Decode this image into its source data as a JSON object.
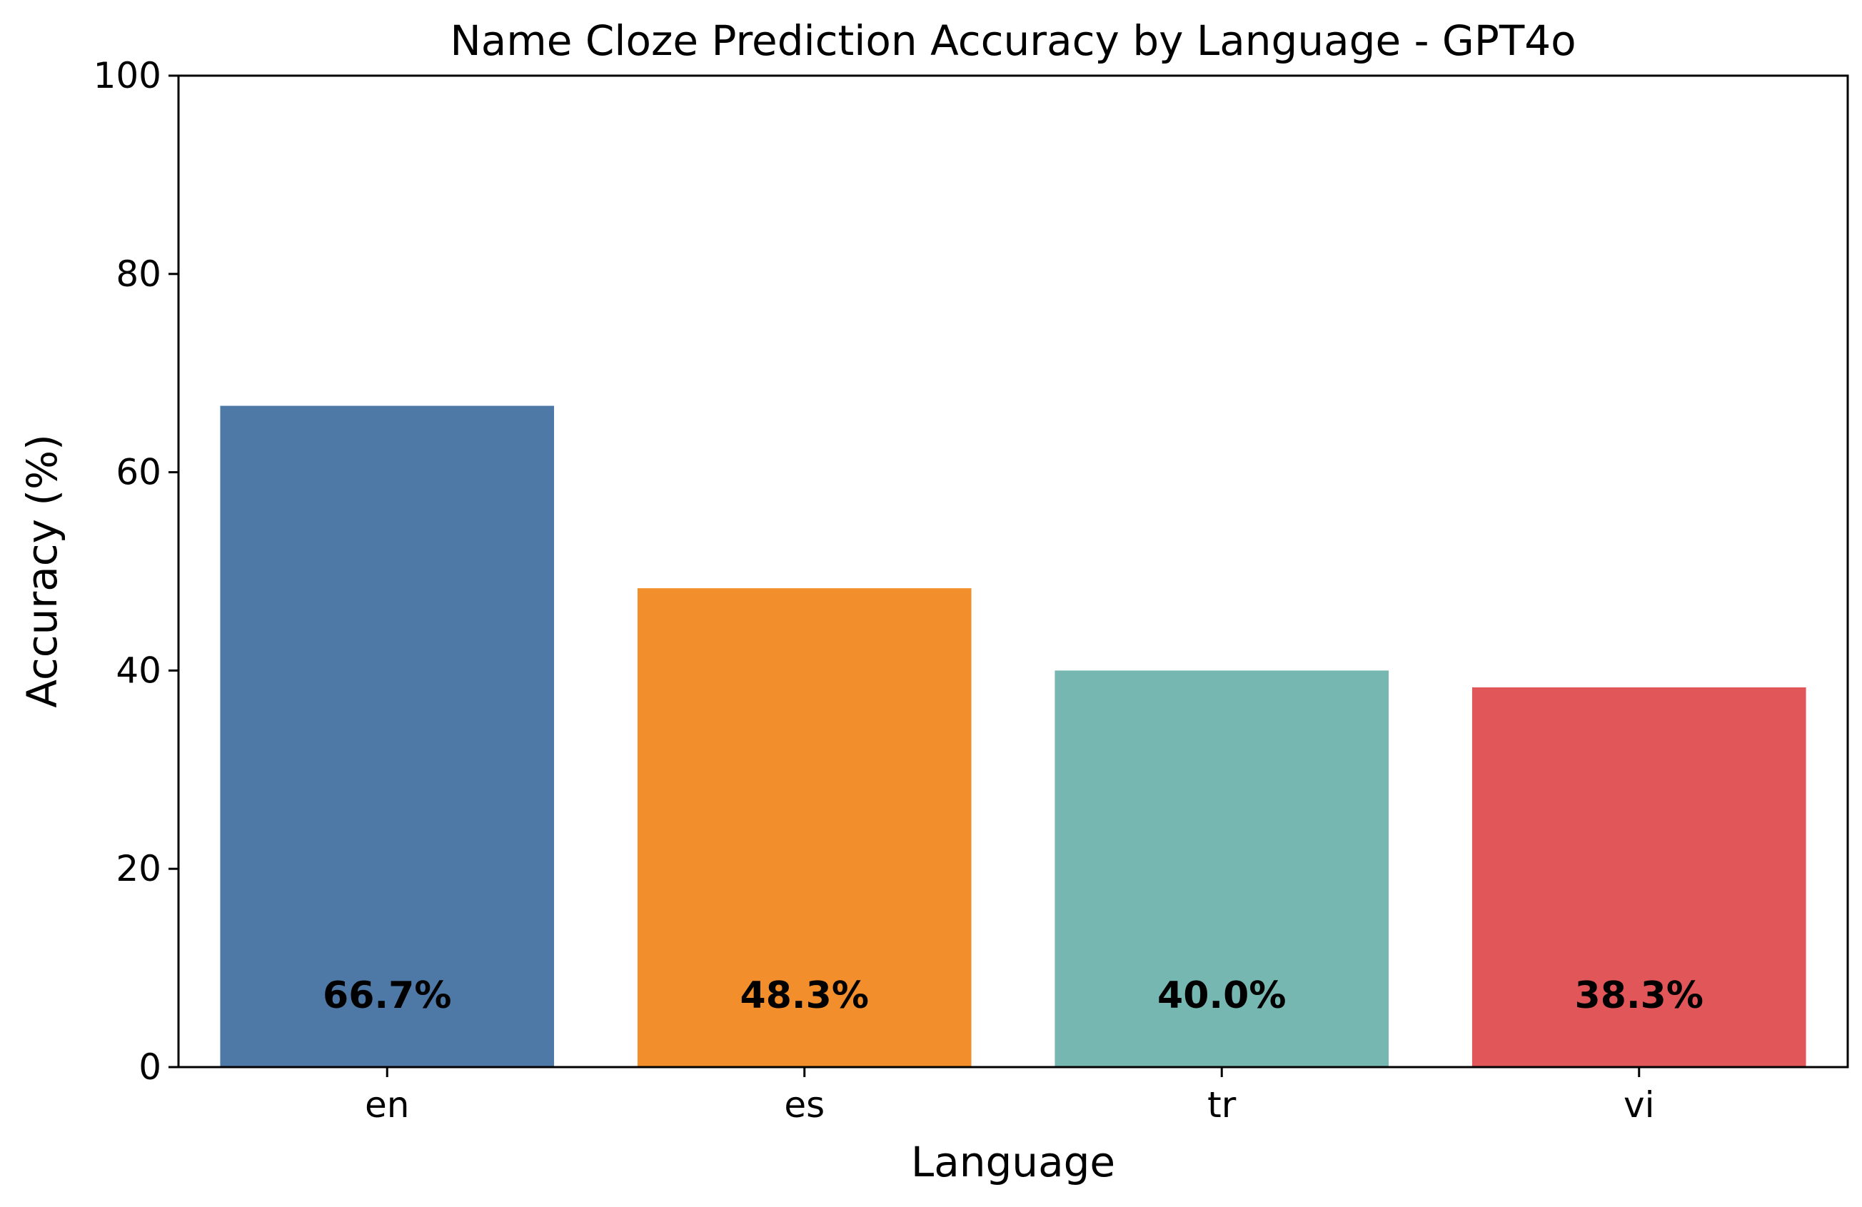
{
  "chart_data": {
    "type": "bar",
    "title": "Name Cloze Prediction Accuracy by Language - GPT4o",
    "xlabel": "Language",
    "ylabel": "Accuracy (%)",
    "categories": [
      "en",
      "es",
      "tr",
      "vi"
    ],
    "values": [
      66.7,
      48.3,
      40.0,
      38.3
    ],
    "data_labels": [
      "66.7%",
      "48.3%",
      "40.0%",
      "38.3%"
    ],
    "colors": [
      "#4e79a7",
      "#f28e2b",
      "#76b7b2",
      "#e15759"
    ],
    "ylim": [
      0,
      100
    ],
    "yticks": [
      0,
      20,
      40,
      60,
      80,
      100
    ],
    "grid": false,
    "legend": "none"
  }
}
